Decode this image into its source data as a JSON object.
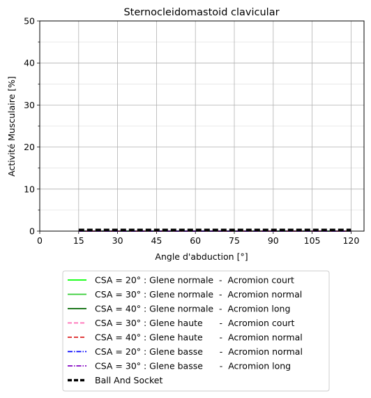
{
  "chart_data": {
    "type": "line",
    "title": "Sternocleidomastoid clavicular",
    "xlabel": "Angle d'abduction [°]",
    "ylabel": "Activité Musculaire [%]",
    "xlim": [
      0,
      125
    ],
    "ylim": [
      0,
      50
    ],
    "xticks": [
      0,
      15,
      30,
      45,
      60,
      75,
      90,
      105,
      120
    ],
    "yticks": [
      0,
      10,
      20,
      30,
      40,
      50
    ],
    "yminor_ticks": [
      5,
      15,
      25,
      35,
      45
    ],
    "grid": true,
    "legend_position": "below",
    "x": [
      15,
      120
    ],
    "series": [
      {
        "name": "CSA = 20° : Glene normale  -  Acromion court",
        "values": [
          0,
          0
        ],
        "color": "#00ff00",
        "dash": "solid"
      },
      {
        "name": "CSA = 30° : Glene normale  -  Acromion normal",
        "values": [
          0,
          0
        ],
        "color": "#32cd32",
        "dash": "solid"
      },
      {
        "name": "CSA = 40° : Glene normale  -  Acromion long",
        "values": [
          0,
          0
        ],
        "color": "#006400",
        "dash": "solid"
      },
      {
        "name": "CSA = 30° : Glene haute      -  Acromion court",
        "values": [
          0,
          0
        ],
        "color": "#ff69b4",
        "dash": "dashed"
      },
      {
        "name": "CSA = 40° : Glene haute      -  Acromion normal",
        "values": [
          0,
          0
        ],
        "color": "#dd2222",
        "dash": "dashed"
      },
      {
        "name": "CSA = 20° : Glene basse      -  Acromion normal",
        "values": [
          0,
          0
        ],
        "color": "#0000ff",
        "dash": "dashdot"
      },
      {
        "name": "CSA = 30° : Glene basse      -  Acromion long",
        "values": [
          0,
          0
        ],
        "color": "#8000c0",
        "dash": "dashdot"
      },
      {
        "name": "Ball And Socket",
        "values": [
          0.3,
          0.3
        ],
        "color": "#000000",
        "dash": "bold-dashed"
      }
    ]
  }
}
